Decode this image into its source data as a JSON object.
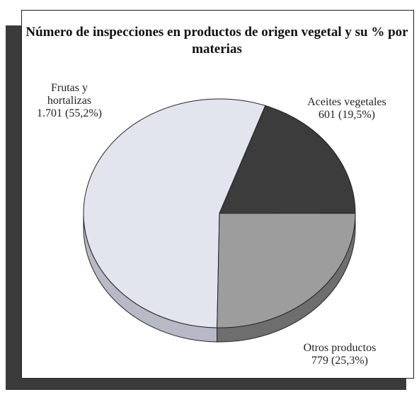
{
  "chart_data": {
    "type": "pie",
    "title": "Número de inspecciones en productos de origen vegetal y su % por materias",
    "categories": [
      "Frutas y hortalizas",
      "Aceites vegetales",
      "Otros productos"
    ],
    "values": [
      1701,
      601,
      779
    ],
    "value_labels": [
      "1.701 (55,2%)",
      "601 (19,5%)",
      "779 (25,3%)"
    ],
    "colors": [
      "#e3e5ee",
      "#3c3c3c",
      "#9d9d9d"
    ],
    "side_colors": [
      "#b7b9c6",
      "#262626",
      "#6e6e6e"
    ]
  }
}
